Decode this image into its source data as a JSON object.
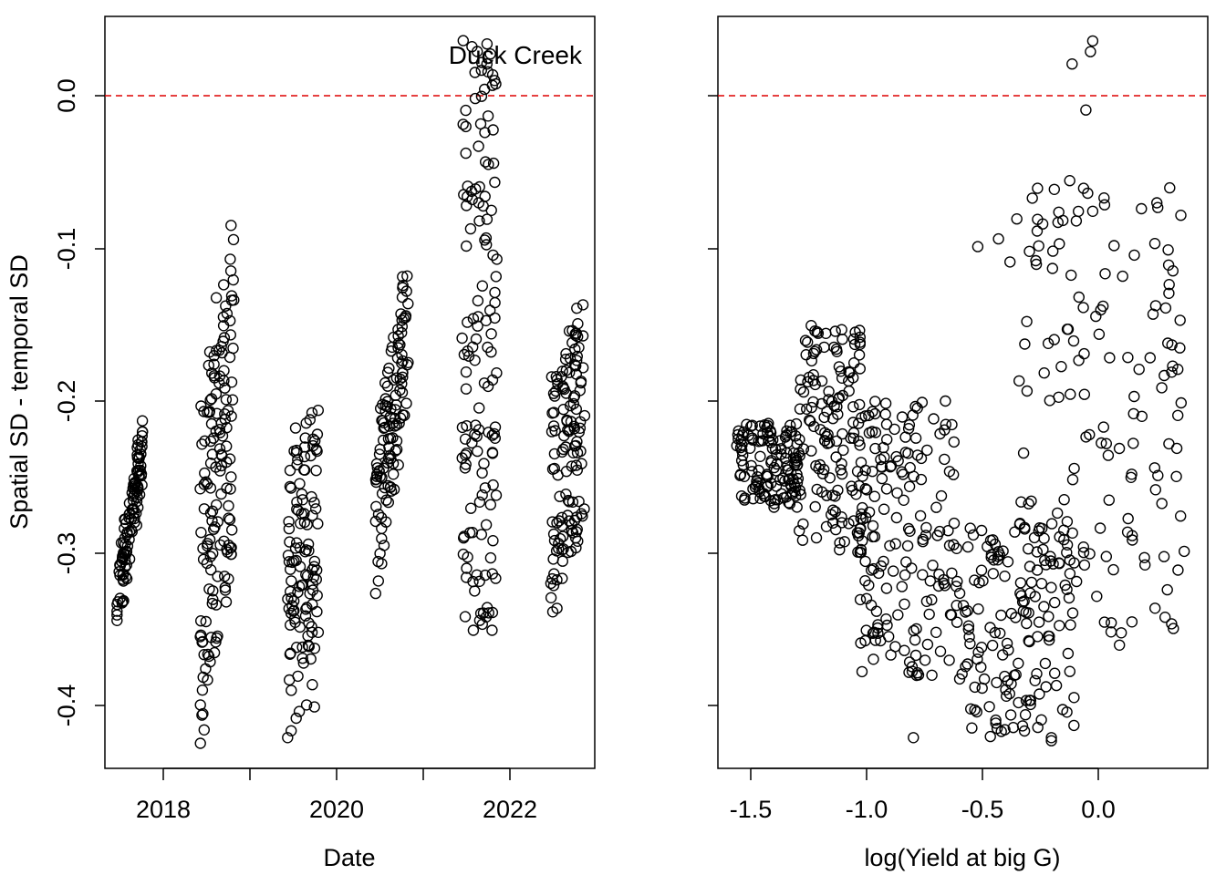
{
  "figure": {
    "ylabel": "Spatial SD - temporal SD",
    "annotation": "Duck Creek",
    "reference_line_color": "#dd0000",
    "marker_color": "#000000"
  },
  "chart_data": [
    {
      "type": "scatter",
      "title": "",
      "annotation": "Duck Creek",
      "xlabel": "Date",
      "ylabel": "Spatial SD - temporal SD",
      "x_ticks": [
        "2018",
        "2020",
        "2022"
      ],
      "y_ticks": [
        "0.0",
        "-0.1",
        "-0.2",
        "-0.3",
        "-0.4"
      ],
      "xlim": [
        "2017-05-01",
        "2022-12-01"
      ],
      "ylim": [
        -0.44,
        0.05
      ],
      "reference_line": {
        "y": 0.0,
        "style": "dashed",
        "color": "#dd0000"
      },
      "marker": "open-circle",
      "grid": false,
      "clusters": [
        {
          "x_range": [
            "2017-06-20",
            "2017-10-05"
          ],
          "y_range": [
            -0.352,
            -0.21
          ],
          "n": 110,
          "trend": 1.0
        },
        {
          "x_range": [
            "2018-06-01",
            "2018-10-20"
          ],
          "y_range": [
            -0.425,
            -0.077
          ],
          "n": 150,
          "trend": 0.5
        },
        {
          "x_range": [
            "2019-06-01",
            "2019-10-10"
          ],
          "y_range": [
            -0.42,
            -0.2
          ],
          "n": 120,
          "trend": 0.2
        },
        {
          "x_range": [
            "2020-06-01",
            "2020-10-15"
          ],
          "y_range": [
            -0.326,
            -0.098
          ],
          "n": 120,
          "trend": 0.8
        },
        {
          "x_range": [
            "2021-05-25",
            "2021-10-20"
          ],
          "y_range": [
            -0.35,
            0.035
          ],
          "n": 140,
          "trend": 0.0
        },
        {
          "x_range": [
            "2022-06-01",
            "2022-10-20"
          ],
          "y_range": [
            -0.338,
            -0.13
          ],
          "n": 130,
          "trend": 0.4
        }
      ]
    },
    {
      "type": "scatter",
      "title": "",
      "xlabel": "log(Yield at big G)",
      "ylabel": "",
      "x_ticks": [
        "-1.5",
        "-1.0",
        "-0.5",
        "0.0"
      ],
      "y_ticks": [
        "0.0",
        "-0.1",
        "-0.2",
        "-0.3",
        "-0.4"
      ],
      "xlim": [
        -1.65,
        0.48
      ],
      "ylim": [
        -0.44,
        0.05
      ],
      "reference_line": {
        "y": 0.0,
        "style": "dashed",
        "color": "#dd0000"
      },
      "marker": "open-circle",
      "grid": false,
      "clusters": [
        {
          "x_range": [
            -1.57,
            -1.3
          ],
          "y_range": [
            -0.27,
            -0.215
          ],
          "n": 130
        },
        {
          "x_range": [
            -1.3,
            -1.02
          ],
          "y_range": [
            -0.3,
            -0.15
          ],
          "n": 140
        },
        {
          "x_range": [
            -1.05,
            -0.6
          ],
          "y_range": [
            -0.38,
            -0.2
          ],
          "n": 170
        },
        {
          "x_range": [
            -0.6,
            -0.1
          ],
          "y_range": [
            -0.42,
            -0.28
          ],
          "n": 150
        },
        {
          "x_range": [
            -0.35,
            0.38
          ],
          "y_range": [
            -0.36,
            -0.06
          ],
          "n": 140
        }
      ],
      "points": [
        {
          "x": -0.02,
          "y": 0.034
        },
        {
          "x": -0.03,
          "y": 0.027
        },
        {
          "x": -0.11,
          "y": 0.019
        },
        {
          "x": -0.05,
          "y": -0.011
        },
        {
          "x": -0.12,
          "y": -0.057
        },
        {
          "x": -0.06,
          "y": -0.062
        },
        {
          "x": -0.26,
          "y": -0.062
        },
        {
          "x": -0.02,
          "y": -0.077
        },
        {
          "x": -0.35,
          "y": -0.082
        },
        {
          "x": -0.15,
          "y": -0.083
        },
        {
          "x": -0.52,
          "y": -0.1
        },
        {
          "x": -0.43,
          "y": -0.095
        },
        {
          "x": -0.38,
          "y": -0.11
        },
        {
          "x": 0.25,
          "y": -0.098
        },
        {
          "x": 0.31,
          "y": -0.112
        },
        {
          "x": 0.36,
          "y": -0.148
        },
        {
          "x": 0.35,
          "y": -0.21
        },
        {
          "x": 0.35,
          "y": -0.18
        },
        {
          "x": 0.28,
          "y": -0.192
        },
        {
          "x": 0.29,
          "y": -0.302
        },
        {
          "x": -0.2,
          "y": -0.422
        },
        {
          "x": -0.2,
          "y": -0.42
        },
        {
          "x": -0.8,
          "y": -0.42
        }
      ]
    }
  ]
}
